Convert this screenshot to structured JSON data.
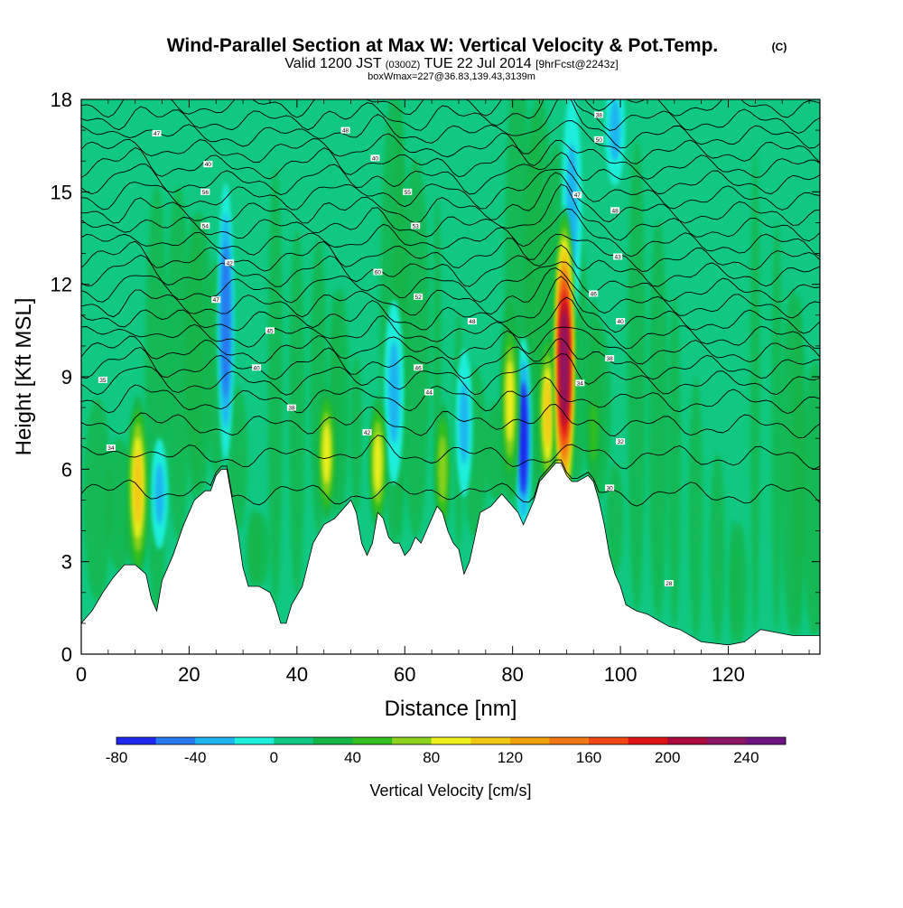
{
  "chart_data": {
    "type": "heatmap",
    "title": "Wind-Parallel Section at Max W: Vertical Velocity & Pot.Temp.",
    "title_mark": "(C)",
    "subtitle_valid": "Valid 1200 JST",
    "subtitle_utc": "(0300Z)",
    "subtitle_date": "TUE 22 Jul 2014",
    "subtitle_fcst": "[9hrFcst@2243z]",
    "subtitle2": "boxWmax=227@36.83,139.43,3139m",
    "xlabel": "Distance [nm]",
    "ylabel": "Height [Kft MSL]",
    "xlim": [
      0,
      137
    ],
    "ylim": [
      0,
      18
    ],
    "x_ticks": [
      0,
      20,
      40,
      60,
      80,
      100,
      120
    ],
    "y_ticks": [
      0,
      3,
      6,
      9,
      12,
      15,
      18
    ],
    "grid": false,
    "colorbar": {
      "label": "Vertical Velocity [cm/s]",
      "tick_labels": [
        -80,
        -40,
        0,
        40,
        80,
        120,
        160,
        200,
        240
      ],
      "min": -80,
      "max": 260,
      "step": 20,
      "colors": [
        "#1e28f0",
        "#2878f0",
        "#1eb4f0",
        "#1eeedc",
        "#10c882",
        "#14b446",
        "#32be1e",
        "#8cd21e",
        "#f0f01e",
        "#f0c814",
        "#f0a00a",
        "#f07814",
        "#f04614",
        "#dc1414",
        "#aa0a3c",
        "#8c1464",
        "#6e1482"
      ]
    },
    "terrain_kft": [
      [
        0,
        1.0
      ],
      [
        2,
        1.4
      ],
      [
        4,
        2.0
      ],
      [
        6,
        2.5
      ],
      [
        8,
        2.9
      ],
      [
        10,
        2.9
      ],
      [
        12,
        2.6
      ],
      [
        13,
        1.8
      ],
      [
        14,
        1.4
      ],
      [
        15,
        2.4
      ],
      [
        17,
        3.2
      ],
      [
        19,
        4.2
      ],
      [
        21,
        5.0
      ],
      [
        23,
        5.3
      ],
      [
        24,
        5.3
      ],
      [
        25,
        5.8
      ],
      [
        26,
        6.0
      ],
      [
        27,
        6.0
      ],
      [
        28,
        5.0
      ],
      [
        29,
        4.0
      ],
      [
        30,
        2.8
      ],
      [
        31,
        2.2
      ],
      [
        33,
        2.2
      ],
      [
        35,
        2.0
      ],
      [
        36,
        1.6
      ],
      [
        37,
        1.0
      ],
      [
        38,
        1.0
      ],
      [
        39,
        1.6
      ],
      [
        41,
        2.2
      ],
      [
        43,
        3.6
      ],
      [
        45,
        4.2
      ],
      [
        47,
        4.4
      ],
      [
        49,
        4.8
      ],
      [
        50,
        5.0
      ],
      [
        51,
        4.6
      ],
      [
        52,
        3.6
      ],
      [
        53,
        3.2
      ],
      [
        54,
        3.6
      ],
      [
        55,
        4.6
      ],
      [
        56,
        4.4
      ],
      [
        57,
        3.8
      ],
      [
        58,
        3.6
      ],
      [
        59,
        3.6
      ],
      [
        60,
        3.2
      ],
      [
        61,
        3.4
      ],
      [
        62,
        3.8
      ],
      [
        63,
        3.6
      ],
      [
        64,
        4.0
      ],
      [
        65,
        4.4
      ],
      [
        66,
        4.8
      ],
      [
        67,
        4.6
      ],
      [
        68,
        4.0
      ],
      [
        69,
        3.6
      ],
      [
        70,
        3.4
      ],
      [
        71,
        2.6
      ],
      [
        72,
        3.0
      ],
      [
        73,
        3.8
      ],
      [
        74,
        4.6
      ],
      [
        76,
        4.8
      ],
      [
        78,
        5.2
      ],
      [
        80,
        4.8
      ],
      [
        81,
        4.6
      ],
      [
        82,
        4.2
      ],
      [
        83,
        4.6
      ],
      [
        84,
        5.0
      ],
      [
        85,
        5.6
      ],
      [
        86,
        5.8
      ],
      [
        88,
        6.2
      ],
      [
        89,
        6.2
      ],
      [
        90,
        5.8
      ],
      [
        91,
        5.6
      ],
      [
        92,
        5.6
      ],
      [
        94,
        5.8
      ],
      [
        95,
        5.6
      ],
      [
        96,
        5.0
      ],
      [
        97,
        4.2
      ],
      [
        98,
        3.2
      ],
      [
        99,
        2.6
      ],
      [
        100,
        2.2
      ],
      [
        101,
        1.6
      ],
      [
        103,
        1.4
      ],
      [
        105,
        1.3
      ],
      [
        107,
        1.1
      ],
      [
        109,
        0.9
      ],
      [
        111,
        0.8
      ],
      [
        113,
        0.6
      ],
      [
        115,
        0.4
      ],
      [
        120,
        0.3
      ],
      [
        123,
        0.4
      ],
      [
        126,
        0.8
      ],
      [
        129,
        0.7
      ],
      [
        132,
        0.6
      ],
      [
        137,
        0.6
      ]
    ],
    "updrafts": [
      {
        "x": 10.5,
        "y": 5.4,
        "w": 1.4,
        "h": 2.2,
        "peak": 100
      },
      {
        "x": 45.5,
        "y": 6.5,
        "w": 1.2,
        "h": 1.6,
        "peak": 80
      },
      {
        "x": 55.0,
        "y": 6.2,
        "w": 1.2,
        "h": 1.6,
        "peak": 80
      },
      {
        "x": 67.0,
        "y": 6.0,
        "w": 1.1,
        "h": 1.6,
        "peak": 60
      },
      {
        "x": 79.5,
        "y": 8.2,
        "w": 1.3,
        "h": 2.4,
        "peak": 90
      },
      {
        "x": 86.5,
        "y": 7.8,
        "w": 1.2,
        "h": 2.0,
        "peak": 100
      },
      {
        "x": 89.6,
        "y": 9.4,
        "w": 1.5,
        "h": 3.8,
        "peak": 227
      },
      {
        "x": 95.0,
        "y": 7.2,
        "w": 1.0,
        "h": 1.4,
        "peak": 50
      }
    ],
    "downdrafts": [
      {
        "x": 26.8,
        "y": 10.8,
        "w": 1.0,
        "h": 3.0,
        "peak": -60
      },
      {
        "x": 82.0,
        "y": 7.0,
        "w": 1.0,
        "h": 2.2,
        "peak": -70
      },
      {
        "x": 58.0,
        "y": 8.5,
        "w": 1.2,
        "h": 2.0,
        "peak": -30
      },
      {
        "x": 71.0,
        "y": 7.5,
        "w": 1.0,
        "h": 1.6,
        "peak": -40
      },
      {
        "x": 14.5,
        "y": 5.2,
        "w": 1.0,
        "h": 1.2,
        "peak": -30
      },
      {
        "x": 91.0,
        "y": 14.5,
        "w": 1.2,
        "h": 2.5,
        "peak": -40
      },
      {
        "x": 99.0,
        "y": 17.0,
        "w": 1.2,
        "h": 1.2,
        "peak": -30
      }
    ],
    "isentrope_heights_kft": [
      5.2,
      6.4,
      7.4,
      8.2,
      8.8,
      9.3,
      9.8,
      10.3,
      10.8,
      11.3,
      11.8,
      12.3,
      12.8,
      13.3,
      13.8,
      14.3,
      14.8,
      15.3,
      15.8,
      16.3,
      16.8,
      17.3,
      17.8
    ],
    "contour_labels": [
      {
        "text": "35",
        "x": 4,
        "y": 8.9
      },
      {
        "text": "34",
        "x": 5.5,
        "y": 6.7
      },
      {
        "text": "47",
        "x": 14,
        "y": 16.9
      },
      {
        "text": "40",
        "x": 23.5,
        "y": 15.9
      },
      {
        "text": "56",
        "x": 23,
        "y": 15.0
      },
      {
        "text": "54",
        "x": 23,
        "y": 13.9
      },
      {
        "text": "42",
        "x": 27.5,
        "y": 12.7
      },
      {
        "text": "47",
        "x": 25,
        "y": 11.5
      },
      {
        "text": "45",
        "x": 35,
        "y": 10.5
      },
      {
        "text": "40",
        "x": 32.5,
        "y": 9.3
      },
      {
        "text": "38",
        "x": 39,
        "y": 8.0
      },
      {
        "text": "48",
        "x": 49,
        "y": 17.0
      },
      {
        "text": "40",
        "x": 54.5,
        "y": 16.1
      },
      {
        "text": "55",
        "x": 60.5,
        "y": 15.0
      },
      {
        "text": "53",
        "x": 62,
        "y": 13.9
      },
      {
        "text": "60",
        "x": 55,
        "y": 12.4
      },
      {
        "text": "52",
        "x": 62.5,
        "y": 11.6
      },
      {
        "text": "48",
        "x": 72.5,
        "y": 10.8
      },
      {
        "text": "46",
        "x": 62.5,
        "y": 9.3
      },
      {
        "text": "44",
        "x": 64.5,
        "y": 8.5
      },
      {
        "text": "42",
        "x": 53,
        "y": 7.2
      },
      {
        "text": "38",
        "x": 96,
        "y": 17.5
      },
      {
        "text": "50",
        "x": 96,
        "y": 16.7
      },
      {
        "text": "47",
        "x": 92,
        "y": 14.9
      },
      {
        "text": "48",
        "x": 99,
        "y": 14.4
      },
      {
        "text": "43",
        "x": 99.5,
        "y": 12.9
      },
      {
        "text": "46",
        "x": 95,
        "y": 11.7
      },
      {
        "text": "40",
        "x": 100,
        "y": 10.8
      },
      {
        "text": "38",
        "x": 98,
        "y": 9.6
      },
      {
        "text": "34",
        "x": 92.5,
        "y": 8.8
      },
      {
        "text": "32",
        "x": 100,
        "y": 6.9
      },
      {
        "text": "30",
        "x": 98,
        "y": 5.4
      },
      {
        "text": "28",
        "x": 109,
        "y": 2.3
      }
    ]
  }
}
